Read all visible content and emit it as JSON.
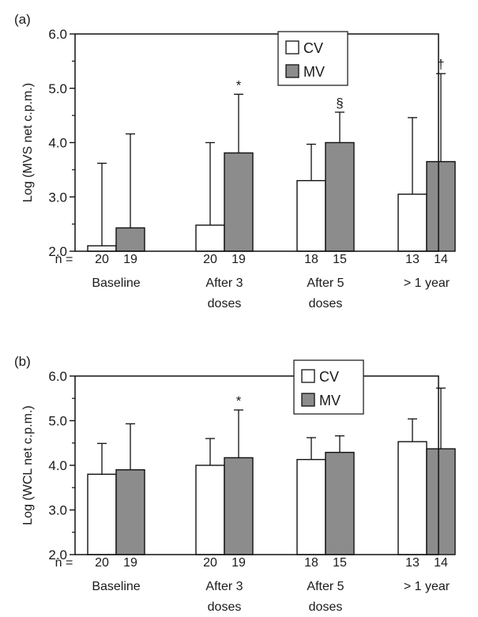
{
  "colors": {
    "cv_fill": "#ffffff",
    "mv_fill": "#8c8c8c",
    "stroke": "#111111",
    "background": "#ffffff"
  },
  "chart_data": [
    {
      "type": "bar",
      "panel_label": "(a)",
      "title": "",
      "xlabel": "",
      "ylabel": "Log (MVS net c.p.m.)",
      "ylim": [
        2.0,
        6.0
      ],
      "yticks": [
        "2.0",
        "3.0",
        "4.0",
        "5.0",
        "6.0"
      ],
      "categories": [
        "Baseline",
        "After 3 doses",
        "After 5 doses",
        "> 1 year"
      ],
      "n_prefix": "n =",
      "series": [
        {
          "name": "CV",
          "values": [
            2.1,
            2.48,
            3.3,
            3.05
          ],
          "errors_upper": [
            3.62,
            4.0,
            3.97,
            4.46
          ],
          "n": [
            "20",
            "20",
            "18",
            "13"
          ],
          "markers": [
            "",
            "",
            "",
            ""
          ]
        },
        {
          "name": "MV",
          "values": [
            2.43,
            3.81,
            4.0,
            3.65
          ],
          "errors_upper": [
            4.16,
            4.89,
            4.56,
            5.27
          ],
          "n": [
            "19",
            "19",
            "15",
            "14"
          ],
          "markers": [
            "",
            "*",
            "§",
            "†"
          ]
        }
      ],
      "legend_position": "top-center",
      "grid": false
    },
    {
      "type": "bar",
      "panel_label": "(b)",
      "title": "",
      "xlabel": "",
      "ylabel": "Log (WCL net c.p.m.)",
      "ylim": [
        2.0,
        6.0
      ],
      "yticks": [
        "2.0",
        "3.0",
        "4.0",
        "5.0",
        "6.0"
      ],
      "categories": [
        "Baseline",
        "After 3 doses",
        "After 5 doses",
        "> 1 year"
      ],
      "n_prefix": "n =",
      "series": [
        {
          "name": "CV",
          "values": [
            3.8,
            4.0,
            4.13,
            4.53
          ],
          "errors_upper": [
            4.49,
            4.6,
            4.62,
            5.04
          ],
          "n": [
            "20",
            "20",
            "18",
            "13"
          ],
          "markers": [
            "",
            "",
            "",
            ""
          ]
        },
        {
          "name": "MV",
          "values": [
            3.9,
            4.17,
            4.29,
            4.37
          ],
          "errors_upper": [
            4.93,
            5.24,
            4.66,
            5.73
          ],
          "n": [
            "19",
            "19",
            "15",
            "14"
          ],
          "markers": [
            "",
            "*",
            "",
            ""
          ]
        }
      ],
      "legend_position": "top-center",
      "grid": false
    }
  ]
}
